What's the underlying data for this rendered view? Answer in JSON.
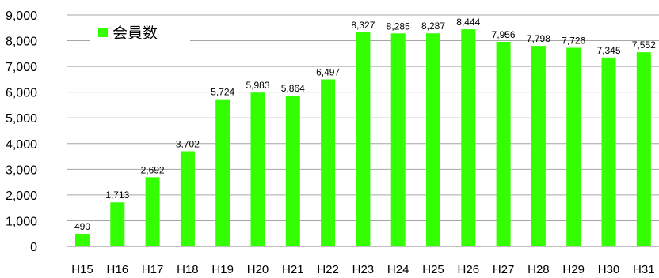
{
  "chart_data": {
    "type": "bar",
    "categories": [
      "H15",
      "H16",
      "H17",
      "H18",
      "H19",
      "H20",
      "H21",
      "H22",
      "H23",
      "H24",
      "H25",
      "H26",
      "H27",
      "H28",
      "H29",
      "H30",
      "H31"
    ],
    "series": [
      {
        "name": "会員数",
        "values": [
          490,
          1713,
          2692,
          3702,
          5724,
          5983,
          5864,
          6497,
          8327,
          8285,
          8287,
          8444,
          7956,
          7798,
          7726,
          7345,
          7552
        ]
      }
    ],
    "value_labels": [
      "490",
      "1,713",
      "2,692",
      "3,702",
      "5,724",
      "5,983",
      "5,864",
      "6,497",
      "8,327",
      "8,285",
      "8,287",
      "8,444",
      "7,956",
      "7,798",
      "7,726",
      "7,345",
      "7,552"
    ],
    "y_ticks": [
      0,
      1000,
      2000,
      3000,
      4000,
      5000,
      6000,
      7000,
      8000,
      9000
    ],
    "y_tick_labels": [
      "0",
      "1,000",
      "2,000",
      "3,000",
      "4,000",
      "5,000",
      "6,000",
      "7,000",
      "8,000",
      "9,000"
    ],
    "ylim": [
      0,
      9000
    ],
    "grid": true,
    "legend_position": "top-left",
    "colors": {
      "bar": "#33ff00",
      "grid": "#a6a6a6",
      "axis": "#808080",
      "legend_bg": "#ffffff"
    }
  }
}
